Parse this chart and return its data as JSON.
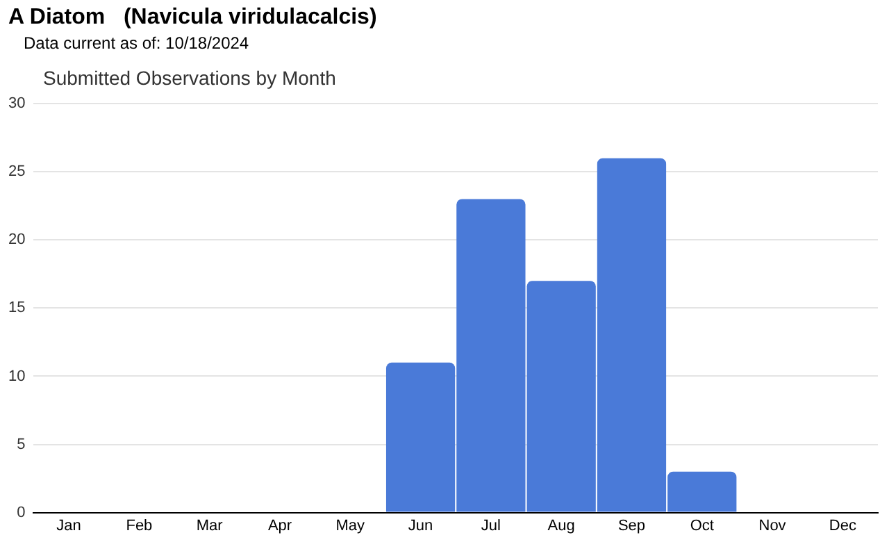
{
  "chart_data": {
    "type": "bar",
    "title": "A Diatom   (Navicula viridulacalcis)",
    "subtitle": "Data current as of: 10/18/2024",
    "annotations": [
      "Submitted Observations by Month"
    ],
    "categories": [
      "Jan",
      "Feb",
      "Mar",
      "Apr",
      "May",
      "Jun",
      "Jul",
      "Aug",
      "Sep",
      "Oct",
      "Nov",
      "Dec"
    ],
    "values": [
      0,
      0,
      0,
      0,
      0,
      11,
      23,
      17,
      26,
      3,
      0,
      0
    ],
    "color": "#4a7ad8",
    "ylim": [
      0,
      30
    ],
    "yticks": [
      0,
      5,
      10,
      15,
      20,
      25,
      30
    ],
    "grid": "y",
    "legend": false
  }
}
